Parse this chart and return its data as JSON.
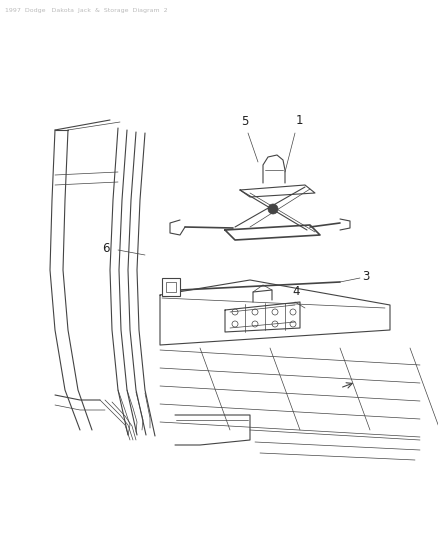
{
  "bg_color": "#ffffff",
  "line_color": "#444444",
  "label_color": "#222222",
  "fig_width": 4.39,
  "fig_height": 5.33,
  "dpi": 100,
  "title": "1997  Dodge   Dakota  Jack  &  Storage  Diagram  2"
}
